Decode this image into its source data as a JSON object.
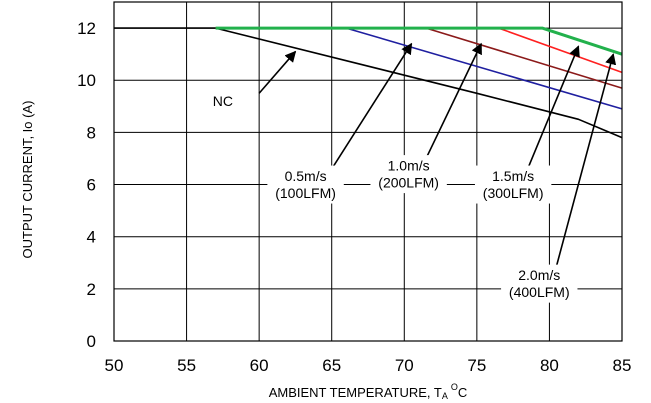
{
  "chart_data": {
    "type": "line",
    "xlabel": "AMBIENT TEMPERATURE, T",
    "xlabel_sub": "A",
    "xlabel_sup": "O",
    "xlabel_unit": "C",
    "ylabel": "OUTPUT CURRENT, Io  (A)",
    "xlim": [
      50,
      85
    ],
    "ylim": [
      0,
      13
    ],
    "xticks": [
      50,
      55,
      60,
      65,
      70,
      75,
      80,
      85
    ],
    "yticks": [
      0,
      2,
      4,
      6,
      8,
      10,
      12
    ],
    "grid": true,
    "series": [
      {
        "color": "#000000",
        "points": [
          [
            50,
            12
          ],
          [
            57,
            12
          ],
          [
            75,
            9.5
          ],
          [
            82,
            8.5
          ],
          [
            85,
            7.8
          ]
        ]
      },
      {
        "color": "#1f1fa0",
        "points": [
          [
            57,
            12
          ],
          [
            66,
            12
          ],
          [
            85,
            8.9
          ]
        ]
      },
      {
        "color": "#8b1a1a",
        "points": [
          [
            57,
            12
          ],
          [
            71.5,
            12
          ],
          [
            85,
            9.7
          ]
        ]
      },
      {
        "color": "#ff2020",
        "points": [
          [
            57,
            12
          ],
          [
            76.5,
            12
          ],
          [
            85,
            10.3
          ]
        ]
      },
      {
        "color": "#22b14c",
        "points": [
          [
            57,
            12
          ],
          [
            79.5,
            12
          ],
          [
            85,
            11.0
          ]
        ]
      }
    ],
    "annotations": [
      {
        "lines": [
          "NC"
        ],
        "text_at": [
          57.5,
          9.2
        ],
        "arrow_from": [
          60,
          9.5
        ],
        "arrow_to": [
          62.5,
          11.1
        ]
      },
      {
        "lines": [
          "0.5m/s",
          "(100LFM)"
        ],
        "text_at": [
          63.2,
          6.0
        ],
        "arrow_from": [
          65,
          6.6
        ],
        "arrow_to": [
          70.5,
          11.4
        ]
      },
      {
        "lines": [
          "1.0m/s",
          "(200LFM)"
        ],
        "text_at": [
          70.3,
          6.4
        ],
        "arrow_from": [
          71.5,
          7.0
        ],
        "arrow_to": [
          75.3,
          11.4
        ]
      },
      {
        "lines": [
          "1.5m/s",
          "(300LFM)"
        ],
        "text_at": [
          77.5,
          6.0
        ],
        "arrow_from": [
          78.5,
          6.6
        ],
        "arrow_to": [
          82,
          11.3
        ]
      },
      {
        "lines": [
          "2.0m/s",
          "(400LFM)"
        ],
        "text_at": [
          79.3,
          2.2
        ],
        "arrow_from": [
          80.5,
          2.9
        ],
        "arrow_to": [
          84.4,
          11.0
        ]
      }
    ]
  }
}
